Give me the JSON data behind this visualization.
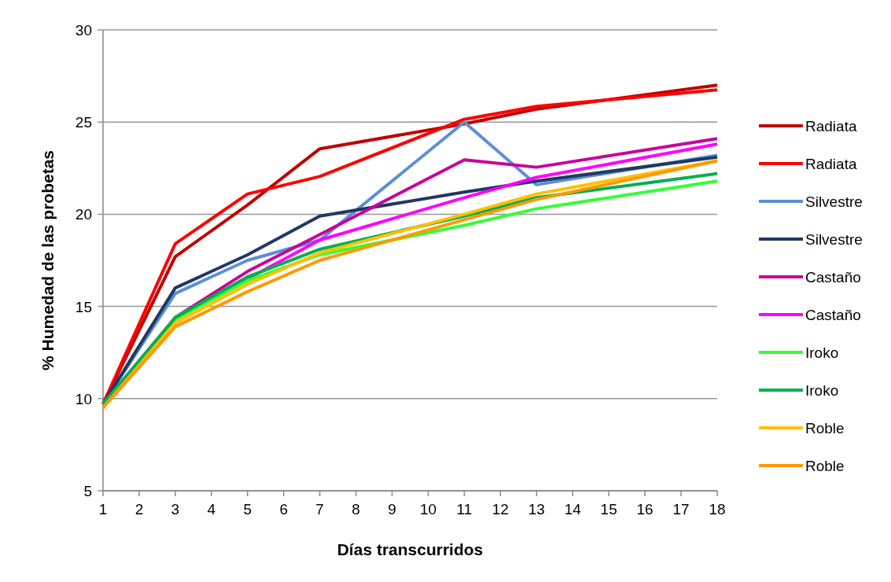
{
  "chart_data": {
    "type": "line",
    "xlabel": "Días transcurridos",
    "ylabel": "% Humedad de las probetas",
    "x": [
      1,
      3,
      5,
      7,
      11,
      13,
      18
    ],
    "xlim": [
      1,
      18
    ],
    "xticks": [
      1,
      2,
      3,
      4,
      5,
      6,
      7,
      8,
      9,
      10,
      11,
      12,
      13,
      14,
      15,
      16,
      17,
      18
    ],
    "ylim": [
      5,
      30
    ],
    "yticks": [
      5,
      10,
      15,
      20,
      25,
      30
    ],
    "grid": "y",
    "legend": "right",
    "marker": "none",
    "line_style": "solid",
    "series": [
      {
        "name": "Radiata",
        "color": "#c00000",
        "values": [
          9.7,
          17.7,
          20.5,
          23.55,
          24.9,
          25.7,
          27.0
        ]
      },
      {
        "name": "Radiata",
        "color": "#ff0000",
        "values": [
          9.7,
          18.4,
          21.1,
          22.05,
          25.15,
          25.85,
          26.75
        ]
      },
      {
        "name": "Silvestre",
        "color": "#5b8fd6",
        "values": [
          9.7,
          15.7,
          17.5,
          18.6,
          25.0,
          21.6,
          23.2
        ]
      },
      {
        "name": "Silvestre",
        "color": "#1f3864",
        "values": [
          9.7,
          16.0,
          17.8,
          19.9,
          21.2,
          21.8,
          23.1
        ]
      },
      {
        "name": "Castaño",
        "color": "#c8009a",
        "values": [
          9.7,
          14.4,
          16.9,
          18.9,
          22.95,
          22.55,
          24.1
        ]
      },
      {
        "name": "Castaño",
        "color": "#ff00ff",
        "values": [
          9.7,
          14.3,
          16.5,
          18.6,
          20.9,
          22.0,
          23.8
        ]
      },
      {
        "name": "Iroko",
        "color": "#33ff33",
        "values": [
          9.7,
          14.3,
          16.4,
          17.8,
          19.4,
          20.3,
          21.8
        ]
      },
      {
        "name": "Iroko",
        "color": "#00b050",
        "values": [
          9.7,
          14.4,
          16.6,
          18.1,
          19.9,
          20.9,
          22.2
        ]
      },
      {
        "name": "Roble",
        "color": "#ffc000",
        "values": [
          9.5,
          14.1,
          16.2,
          17.9,
          20.0,
          21.1,
          22.9
        ]
      },
      {
        "name": "Roble",
        "color": "#ff9900",
        "values": [
          9.5,
          13.9,
          15.8,
          17.5,
          19.7,
          20.8,
          22.9
        ]
      }
    ]
  }
}
